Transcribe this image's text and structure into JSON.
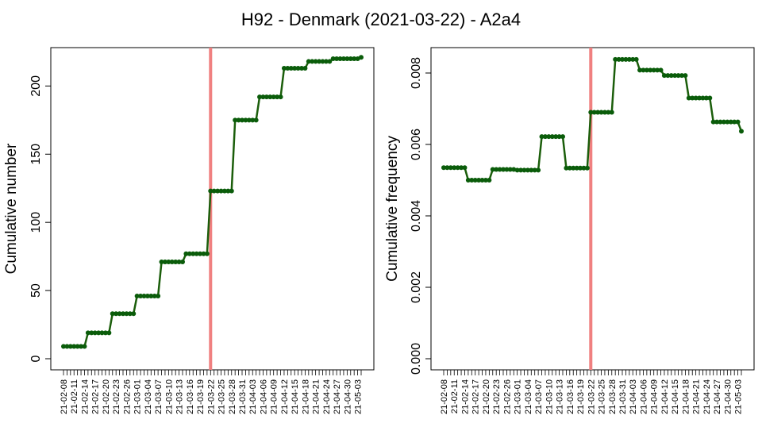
{
  "title": "H92 - Denmark (2021-03-22) - A2a4",
  "colors": {
    "line": "#1b5e0b",
    "marker": "#0a5c0a",
    "vline": "#f08080",
    "frame": "#000000"
  },
  "chart_data": [
    {
      "type": "line",
      "ylabel": "Cumulative number",
      "ylim": [
        0,
        220
      ],
      "yticks": [
        0,
        50,
        100,
        150,
        200
      ],
      "x_tick_labels": [
        "21-02-08",
        "21-02-11",
        "21-02-14",
        "21-02-17",
        "21-02-20",
        "21-02-23",
        "21-02-26",
        "21-03-01",
        "21-03-04",
        "21-03-07",
        "21-03-10",
        "21-03-13",
        "21-03-16",
        "21-03-19",
        "21-03-22",
        "21-03-25",
        "21-03-28",
        "21-03-31",
        "21-04-03",
        "21-04-06",
        "21-04-09",
        "21-04-12",
        "21-04-15",
        "21-04-18",
        "21-04-21",
        "21-04-24",
        "21-04-27",
        "21-04-30",
        "21-05-03"
      ],
      "x_dates": [
        "2021-02-08",
        "2021-05-04"
      ],
      "vline_date": "2021-03-22",
      "segments": [
        {
          "from": "2021-02-08",
          "to": "2021-02-14",
          "value": 9
        },
        {
          "from": "2021-02-15",
          "to": "2021-02-21",
          "value": 19
        },
        {
          "from": "2021-02-22",
          "to": "2021-02-28",
          "value": 33
        },
        {
          "from": "2021-03-01",
          "to": "2021-03-07",
          "value": 46
        },
        {
          "from": "2021-03-08",
          "to": "2021-03-14",
          "value": 71
        },
        {
          "from": "2021-03-15",
          "to": "2021-03-21",
          "value": 77
        },
        {
          "from": "2021-03-22",
          "to": "2021-03-28",
          "value": 123
        },
        {
          "from": "2021-03-29",
          "to": "2021-04-04",
          "value": 175
        },
        {
          "from": "2021-04-05",
          "to": "2021-04-11",
          "value": 192
        },
        {
          "from": "2021-04-12",
          "to": "2021-04-18",
          "value": 213
        },
        {
          "from": "2021-04-19",
          "to": "2021-04-25",
          "value": 218
        },
        {
          "from": "2021-04-26",
          "to": "2021-05-03",
          "value": 220
        },
        {
          "from": "2021-05-04",
          "to": "2021-05-04",
          "value": 221
        }
      ]
    },
    {
      "type": "line",
      "ylabel": "Cumulative frequency",
      "ylim": [
        0,
        0.0084
      ],
      "yticks": [
        0.0,
        0.002,
        0.004,
        0.006,
        0.008
      ],
      "ytick_labels": [
        "0.000",
        "0.002",
        "0.004",
        "0.006",
        "0.008"
      ],
      "x_tick_labels": [
        "21-02-08",
        "21-02-11",
        "21-02-14",
        "21-02-17",
        "21-02-20",
        "21-02-23",
        "21-02-26",
        "21-03-01",
        "21-03-04",
        "21-03-07",
        "21-03-10",
        "21-03-13",
        "21-03-16",
        "21-03-19",
        "21-03-22",
        "21-03-25",
        "21-03-28",
        "21-03-31",
        "21-04-03",
        "21-04-06",
        "21-04-09",
        "21-04-12",
        "21-04-15",
        "21-04-18",
        "21-04-21",
        "21-04-24",
        "21-04-27",
        "21-04-30",
        "21-05-03"
      ],
      "x_dates": [
        "2021-02-08",
        "2021-05-04"
      ],
      "vline_date": "2021-03-22",
      "segments": [
        {
          "from": "2021-02-08",
          "to": "2021-02-14",
          "value": 0.00535
        },
        {
          "from": "2021-02-15",
          "to": "2021-02-21",
          "value": 0.005
        },
        {
          "from": "2021-02-22",
          "to": "2021-02-28",
          "value": 0.0053
        },
        {
          "from": "2021-03-01",
          "to": "2021-03-07",
          "value": 0.00528
        },
        {
          "from": "2021-03-08",
          "to": "2021-03-14",
          "value": 0.00622
        },
        {
          "from": "2021-03-15",
          "to": "2021-03-21",
          "value": 0.00534
        },
        {
          "from": "2021-03-22",
          "to": "2021-03-28",
          "value": 0.0069
        },
        {
          "from": "2021-03-29",
          "to": "2021-04-04",
          "value": 0.00838
        },
        {
          "from": "2021-04-05",
          "to": "2021-04-11",
          "value": 0.00808
        },
        {
          "from": "2021-04-12",
          "to": "2021-04-18",
          "value": 0.00793
        },
        {
          "from": "2021-04-19",
          "to": "2021-04-25",
          "value": 0.0073
        },
        {
          "from": "2021-04-26",
          "to": "2021-05-03",
          "value": 0.00663
        },
        {
          "from": "2021-05-04",
          "to": "2021-05-04",
          "value": 0.00637
        }
      ]
    }
  ]
}
